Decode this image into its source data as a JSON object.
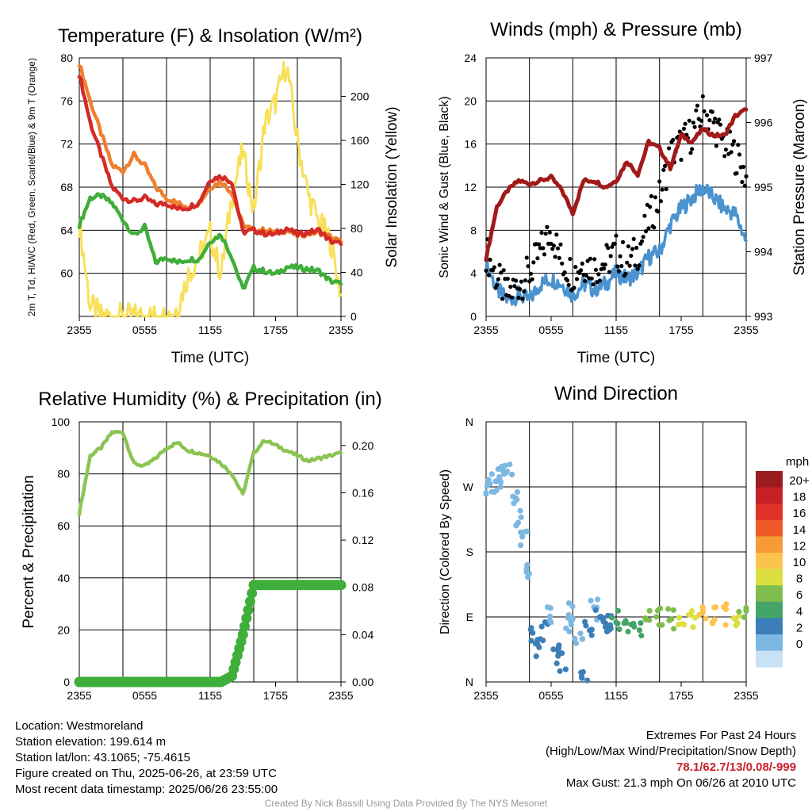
{
  "colors": {
    "temp": "#d42a26",
    "dew": "#3fae3a",
    "heat": "#f07f2e",
    "solar": "#f8e05a",
    "wind": "#4a93cf",
    "gust": "#000000",
    "pressure": "#a11a1a",
    "rh": "#8cc454",
    "precip": "#3fae3a"
  },
  "xticks": [
    "2355",
    "0555",
    "1155",
    "1755",
    "2355"
  ],
  "chart_data": [
    {
      "type": "line",
      "title": "Temperature (F) & Insolation (W/m²)",
      "xlabel": "Time (UTC)",
      "ylabel_left": "2m T, Td, HI/WC (Red, Green, Scarlet/Blue) & 9m T (Orange)",
      "ylabel_right": "Solar Insolation (Yellow)",
      "ylim": [
        56,
        80
      ],
      "ylim_right": [
        0,
        235
      ],
      "yticks": [
        60,
        64,
        68,
        72,
        76,
        80
      ],
      "yticks_right": [
        0,
        40,
        80,
        120,
        160,
        200
      ],
      "x_hours": [
        0,
        1,
        2,
        3,
        4,
        5,
        6,
        7,
        8,
        9,
        10,
        11,
        12,
        13,
        14,
        15,
        16,
        17,
        18,
        19,
        20,
        21,
        22,
        23,
        24
      ],
      "series": [
        {
          "key": "temp",
          "values": [
            78.5,
            74,
            71,
            68,
            67,
            66.7,
            67,
            66.4,
            66.5,
            66,
            66.1,
            66.6,
            68.7,
            69,
            68.5,
            63.8,
            64,
            63.7,
            63.6,
            64.2,
            63.6,
            63.8,
            64,
            63,
            62.7
          ]
        },
        {
          "key": "heat",
          "values": [
            79.5,
            76,
            73,
            70,
            69.5,
            71,
            70,
            68,
            67,
            66.5,
            66.2,
            66.5,
            68,
            68.5,
            67.5,
            64.5,
            64,
            64,
            63.8,
            64,
            63.5,
            63.7,
            63.8,
            63.4,
            62.9
          ]
        },
        {
          "key": "dew",
          "values": [
            64.5,
            67,
            67.2,
            66.5,
            65,
            63.5,
            64.3,
            61,
            61.5,
            61,
            61.3,
            61.3,
            63,
            63.6,
            61.5,
            58.5,
            60.5,
            60.2,
            59.9,
            60.6,
            60.5,
            60.4,
            60.2,
            59.3,
            59
          ]
        }
      ],
      "solar_values": [
        85,
        10,
        0,
        0,
        0,
        0,
        0,
        0,
        0,
        8,
        38,
        55,
        75,
        38,
        110,
        150,
        95,
        175,
        195,
        230,
        160,
        110,
        85,
        70,
        20
      ]
    },
    {
      "type": "line",
      "title": "Winds (mph) & Pressure (mb)",
      "xlabel": "Time (UTC)",
      "ylabel_left": "Sonic Wind & Gust (Blue, Black)",
      "ylabel_right": "Station Pressure (Maroon)",
      "ylim": [
        0,
        24
      ],
      "ylim_right": [
        993,
        997
      ],
      "yticks": [
        0,
        4,
        8,
        12,
        16,
        20,
        24
      ],
      "yticks_right": [
        993,
        994,
        995,
        996,
        997
      ],
      "x_hours": [
        0,
        1,
        2,
        3,
        4,
        5,
        6,
        7,
        8,
        9,
        10,
        11,
        12,
        13,
        14,
        15,
        16,
        17,
        18,
        19,
        20,
        21,
        22,
        23,
        24
      ],
      "wind_values": [
        5,
        2.5,
        1.5,
        2,
        1.5,
        3,
        3.5,
        3,
        2,
        3,
        2.5,
        3,
        4,
        3.5,
        4,
        5.5,
        6,
        8.5,
        10,
        11,
        12,
        11,
        10,
        9.5,
        7
      ],
      "gust_values": [
        6,
        3.5,
        2,
        3,
        4,
        6,
        8,
        5,
        4,
        5,
        4.5,
        5,
        6,
        5,
        6,
        9,
        11,
        15,
        16,
        17,
        19,
        18,
        16,
        15,
        13
      ],
      "pressure_values": [
        993.9,
        994.7,
        994.95,
        995.1,
        995.05,
        995.1,
        995.15,
        994.95,
        994.6,
        995.1,
        995.1,
        995.0,
        995.1,
        995.4,
        995.2,
        995.7,
        995.6,
        995.3,
        995.8,
        995.7,
        995.9,
        995.8,
        995.8,
        996.1,
        996.2
      ]
    },
    {
      "type": "line",
      "title": "Relative Humidity (%) & Precipitation (in)",
      "xlabel": "",
      "ylabel_left": "Percent & Precipitation",
      "ylim": [
        0,
        100
      ],
      "ylim_right": [
        0,
        0.22
      ],
      "yticks": [
        0,
        20,
        40,
        60,
        80,
        100
      ],
      "yticks_right": [
        "0.00",
        "0.04",
        "0.08",
        "0.12",
        "0.16",
        "0.20"
      ],
      "x_hours": [
        0,
        1,
        2,
        3,
        4,
        5,
        6,
        7,
        8,
        9,
        10,
        11,
        12,
        13,
        14,
        15,
        16,
        17,
        18,
        19,
        20,
        21,
        22,
        23,
        24
      ],
      "rh_values": [
        65,
        87,
        90,
        96,
        96,
        84,
        83,
        86,
        90,
        92,
        89,
        88,
        87,
        84,
        80,
        72,
        88,
        93,
        91,
        89,
        87,
        85,
        86,
        87,
        88
      ],
      "precip_values": [
        0,
        0,
        0,
        0,
        0,
        0,
        0,
        0,
        0,
        0,
        0,
        0,
        0,
        0,
        0.005,
        0.04,
        0.082,
        0.082,
        0.082,
        0.082,
        0.082,
        0.082,
        0.082,
        0.082,
        0.082
      ]
    },
    {
      "type": "scatter",
      "title": "Wind Direction",
      "xlabel": "",
      "ylabel_left": "Direction (Colored By Speed)",
      "ytick_labels": [
        "N",
        "E",
        "S",
        "W",
        "N"
      ],
      "x_hours": [
        0.2,
        0.5,
        1,
        1.5,
        2,
        2.5,
        3,
        3.5,
        4,
        4.5,
        5,
        5.5,
        6,
        6.5,
        7,
        7.5,
        8,
        8.5,
        9,
        9.5,
        10,
        10.5,
        11,
        11.5,
        12,
        13,
        14,
        15,
        16,
        17,
        18,
        19,
        20,
        21,
        22,
        23,
        23.7
      ],
      "directions": [
        275,
        265,
        280,
        285,
        290,
        260,
        230,
        200,
        150,
        60,
        50,
        70,
        90,
        40,
        30,
        80,
        95,
        60,
        10,
        70,
        100,
        90,
        80,
        80,
        85,
        75,
        70,
        90,
        90,
        88,
        88,
        90,
        92,
        94,
        93,
        89,
        92
      ],
      "speeds": [
        2,
        2,
        1,
        1,
        2,
        1,
        2,
        1,
        2,
        4,
        3,
        3,
        2,
        4,
        3,
        2,
        1,
        2,
        3,
        3,
        2,
        3,
        4,
        4,
        5,
        6,
        6,
        7,
        7,
        8,
        9,
        10,
        11,
        12,
        11,
        9,
        8
      ],
      "legend_title": "mph",
      "legend_labels": [
        "20+",
        "18",
        "16",
        "14",
        "12",
        "10",
        "8",
        "6",
        "4",
        "2",
        "0"
      ],
      "legend_colors": [
        "#9b1c1f",
        "#c52127",
        "#e2302b",
        "#f05a28",
        "#f79b36",
        "#fcc44f",
        "#dcdf3f",
        "#7fbd4e",
        "#45a568",
        "#3b7eb8",
        "#7db8e2",
        "#c7e2f4"
      ]
    }
  ],
  "info": {
    "location": "Location: Westmoreland",
    "elevation": "Station elevation: 199.614 m",
    "latlon": "Station lat/lon: 43.1065; -75.4615",
    "created": "Figure created on Thu, 2025-06-26, at 23:59 UTC",
    "recent": "Most recent data timestamp: 2025/06/26 23:55:00"
  },
  "extremes": {
    "heading": "Extremes For Past 24 Hours",
    "subheading": "(High/Low/Max Wind/Precipitation/Snow Depth)",
    "values": "78.1/62.7/13/0.08/-999",
    "gust": "Max Gust: 21.3 mph On 06/26 at 2010 UTC"
  },
  "footer": "Created By Nick Bassill Using Data Provided By The NYS Mesonet"
}
